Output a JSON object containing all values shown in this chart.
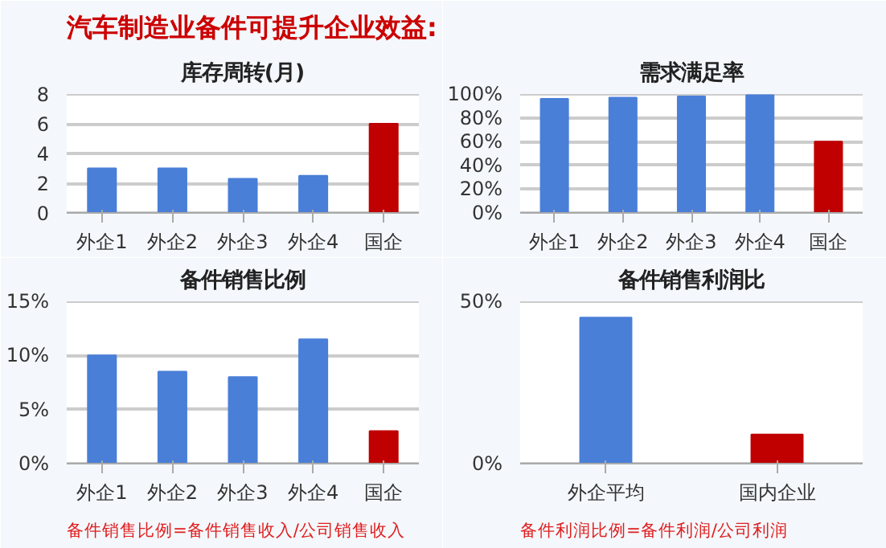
{
  "chart_data": [
    {
      "type": "bar",
      "title": "库存周转(月)",
      "annotations": [
        "汽车制造业备件可提升企业效益:"
      ],
      "categories": [
        "外企1",
        "外企2",
        "外企3",
        "外企4",
        "国企"
      ],
      "values": [
        3.0,
        3.0,
        2.3,
        2.5,
        6.0
      ],
      "colors": [
        "#4a7fd8",
        "#4a7fd8",
        "#4a7fd8",
        "#4a7fd8",
        "#c00000"
      ],
      "ylim": [
        0,
        8
      ],
      "yticks": [
        0,
        2,
        4,
        6,
        8
      ],
      "grid": "y"
    },
    {
      "type": "bar",
      "title": "需求满足率",
      "categories": [
        "外企1",
        "外企2",
        "外企3",
        "外企4",
        "国企"
      ],
      "values": [
        96,
        97,
        98,
        99,
        60
      ],
      "colors": [
        "#4a7fd8",
        "#4a7fd8",
        "#4a7fd8",
        "#4a7fd8",
        "#c00000"
      ],
      "ylim": [
        0,
        100
      ],
      "yticks": [
        {
          "value": 0,
          "label": "0%"
        },
        {
          "value": 20,
          "label": "20%"
        },
        {
          "value": 40,
          "label": "40%"
        },
        {
          "value": 60,
          "label": "60%"
        },
        {
          "value": 80,
          "label": "80%"
        },
        {
          "value": 100,
          "label": "100%"
        }
      ],
      "grid": "y"
    },
    {
      "type": "bar",
      "title": "备件销售比例",
      "annotations": [
        "备件销售比例=备件销售收入/公司销售收入"
      ],
      "categories": [
        "外企1",
        "外企2",
        "外企3",
        "外企4",
        "国企"
      ],
      "values": [
        10,
        8.5,
        8,
        11.5,
        3
      ],
      "colors": [
        "#4a7fd8",
        "#4a7fd8",
        "#4a7fd8",
        "#4a7fd8",
        "#c00000"
      ],
      "ylim": [
        0,
        15
      ],
      "yticks": [
        {
          "value": 0,
          "label": "0%"
        },
        {
          "value": 5,
          "label": "5%"
        },
        {
          "value": 10,
          "label": "10%"
        },
        {
          "value": 15,
          "label": "15%"
        }
      ],
      "grid": "y"
    },
    {
      "type": "bar",
      "title": "备件销售利润比",
      "annotations": [
        "备件利润比例=备件利润/公司利润"
      ],
      "categories": [
        "外企平均",
        "国内企业"
      ],
      "values": [
        45,
        9
      ],
      "colors": [
        "#4a7fd8",
        "#c00000"
      ],
      "ylim": [
        0,
        50
      ],
      "yticks": [
        {
          "value": 0,
          "label": "0%"
        },
        {
          "value": 50,
          "label": "50%"
        }
      ],
      "grid": "y"
    }
  ]
}
